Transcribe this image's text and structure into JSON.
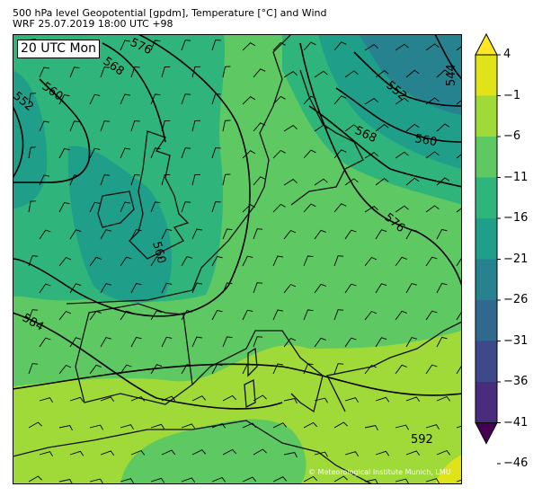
{
  "header": {
    "title": "500 hPa level Geopotential [gpdm], Temperature [°C] and Wind",
    "subtitle": "WRF 25.07.2019 18:00 UTC +98"
  },
  "map": {
    "time_label": "20 UTC Mon",
    "copyright": "© Meteorological Institute Munich, LMU",
    "contour_labels": [
      "576",
      "568",
      "560",
      "552",
      "560",
      "584",
      "552",
      "544",
      "568",
      "560",
      "576",
      "592"
    ]
  },
  "colorbar": {
    "ticks": [
      "4",
      "−1",
      "−6",
      "−11",
      "−16",
      "−21",
      "−26",
      "−31",
      "−36",
      "−41",
      "−46"
    ],
    "colors": [
      "#fde725",
      "#dfe318",
      "#a0da39",
      "#5ec962",
      "#2fb47c",
      "#1f9e89",
      "#26828e",
      "#31688e",
      "#3e4989",
      "#472d7b",
      "#440154"
    ]
  }
}
